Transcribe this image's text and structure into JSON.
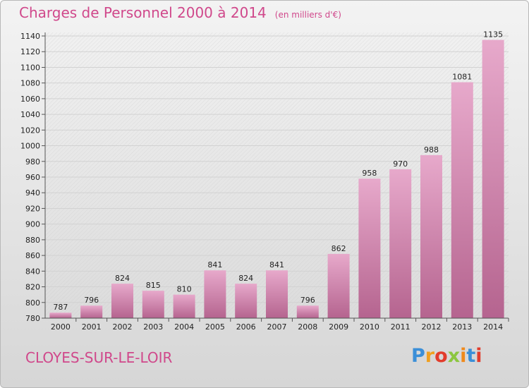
{
  "header": {
    "title": "Charges de Personnel 2000 à 2014",
    "subtitle": "(en milliers d'€)"
  },
  "footer": {
    "town": "CLOYES-SUR-LE-LOIR",
    "logo_text": "Proxiti"
  },
  "colors": {
    "bar_top": "#e7a9cb",
    "bar_bottom": "#b5648f",
    "title": "#d0488b"
  },
  "chart_data": {
    "type": "bar",
    "title": "Charges de Personnel 2000 à 2014",
    "subtitle": "(en milliers d'€)",
    "xlabel": "",
    "ylabel": "",
    "categories": [
      "2000",
      "2001",
      "2002",
      "2003",
      "2004",
      "2005",
      "2006",
      "2007",
      "2008",
      "2009",
      "2010",
      "2011",
      "2012",
      "2013",
      "2014"
    ],
    "values": [
      787,
      796,
      824,
      815,
      810,
      841,
      824,
      841,
      796,
      862,
      958,
      970,
      988,
      1081,
      1135
    ],
    "ylim": [
      780,
      1140
    ],
    "yticks": [
      780,
      800,
      820,
      840,
      860,
      880,
      900,
      920,
      940,
      960,
      980,
      1000,
      1020,
      1040,
      1060,
      1080,
      1100,
      1120,
      1140
    ],
    "grid": true,
    "legend": "none"
  }
}
